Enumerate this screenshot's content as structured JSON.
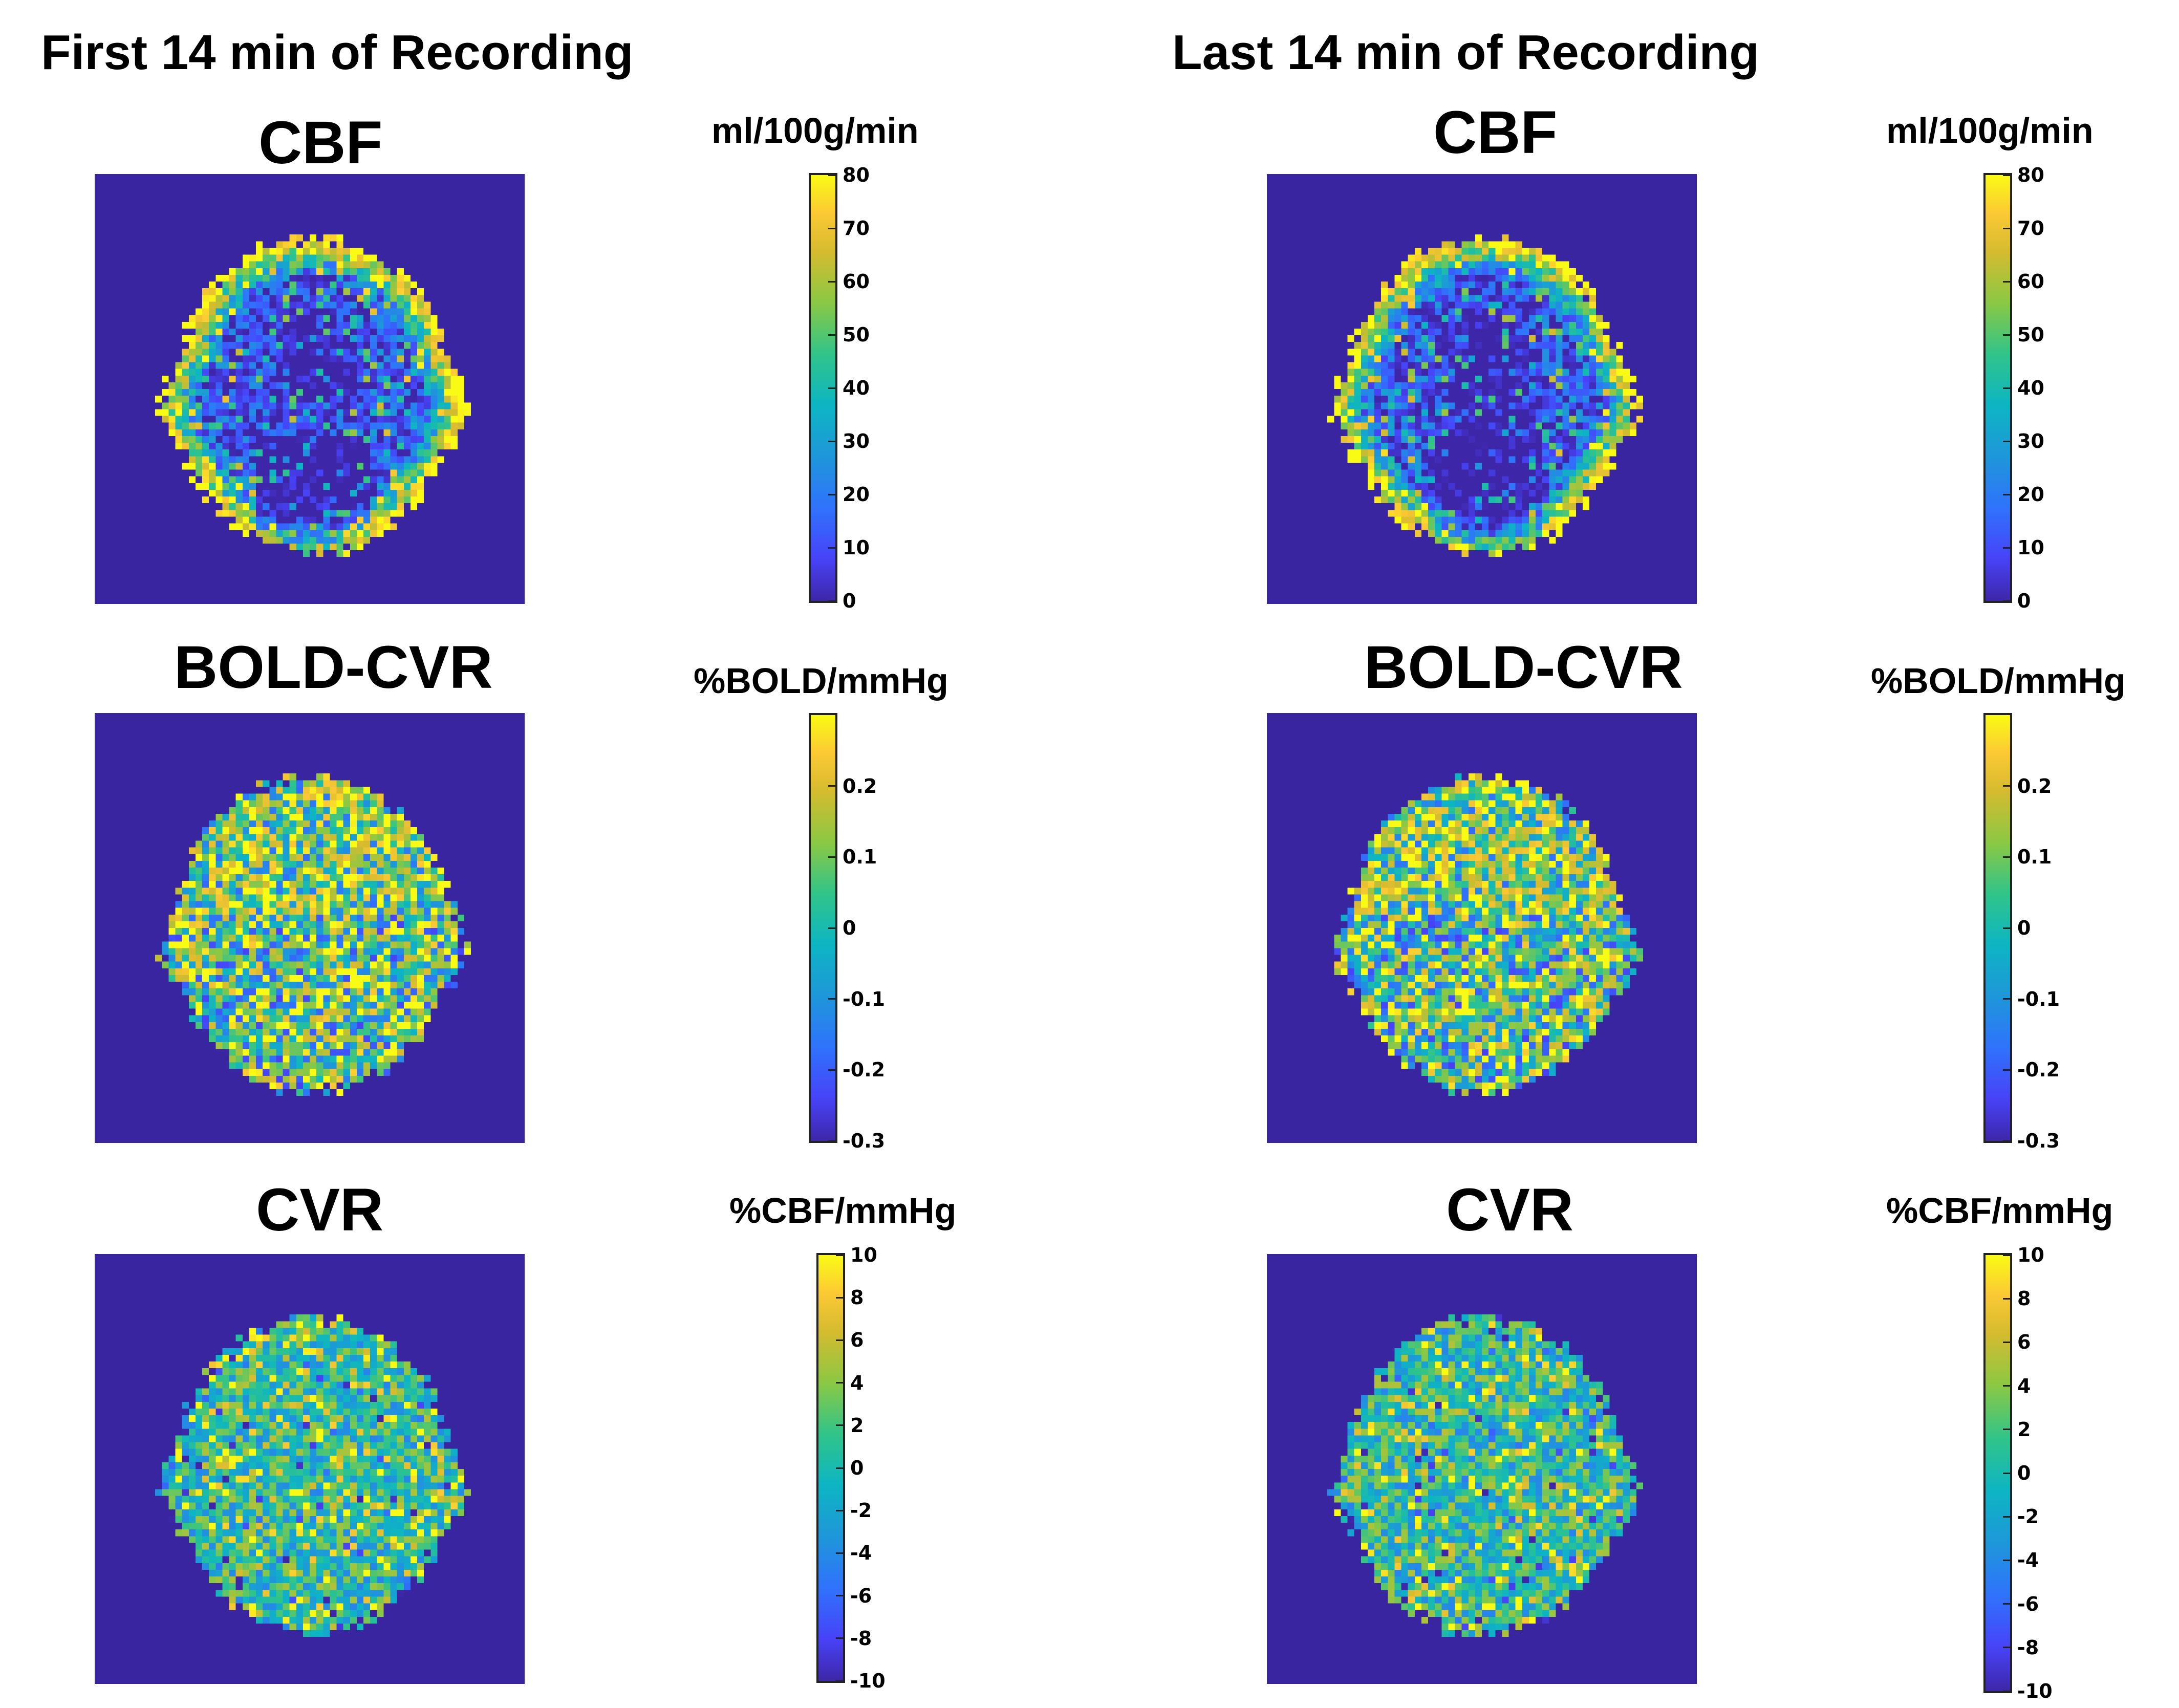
{
  "headings": {
    "left": "First 14 min of Recording",
    "right": "Last 14 min of Recording"
  },
  "panels": {
    "left_cbf": {
      "title": "CBF",
      "unit": "ml/100g/min",
      "ticks": [
        "80",
        "70",
        "60",
        "50",
        "40",
        "30",
        "20",
        "10",
        "0"
      ]
    },
    "left_bold": {
      "title": "BOLD-CVR",
      "unit": "%BOLD/mmHg",
      "ticks": [
        "0.2",
        "0.1",
        "0",
        "-0.1",
        "-0.2",
        "-0.3"
      ]
    },
    "left_cvr": {
      "title": "CVR",
      "unit": "%CBF/mmHg",
      "ticks": [
        "10",
        "8",
        "6",
        "4",
        "2",
        "0",
        "-2",
        "-4",
        "-6",
        "-8",
        "-10"
      ]
    },
    "right_cbf": {
      "title": "CBF",
      "unit": "ml/100g/min",
      "ticks": [
        "80",
        "70",
        "60",
        "50",
        "40",
        "30",
        "20",
        "10",
        "0"
      ]
    },
    "right_bold": {
      "title": "BOLD-CVR",
      "unit": "%BOLD/mmHg",
      "ticks": [
        "0.2",
        "0.1",
        "0",
        "-0.1",
        "-0.2",
        "-0.3"
      ]
    },
    "right_cvr": {
      "title": "CVR",
      "unit": "%CBF/mmHg",
      "ticks": [
        "10",
        "8",
        "6",
        "4",
        "2",
        "0",
        "-2",
        "-4",
        "-6",
        "-8",
        "-10"
      ]
    }
  },
  "colors": {
    "map_background": "#3a25a0",
    "colormap": "parula"
  }
}
